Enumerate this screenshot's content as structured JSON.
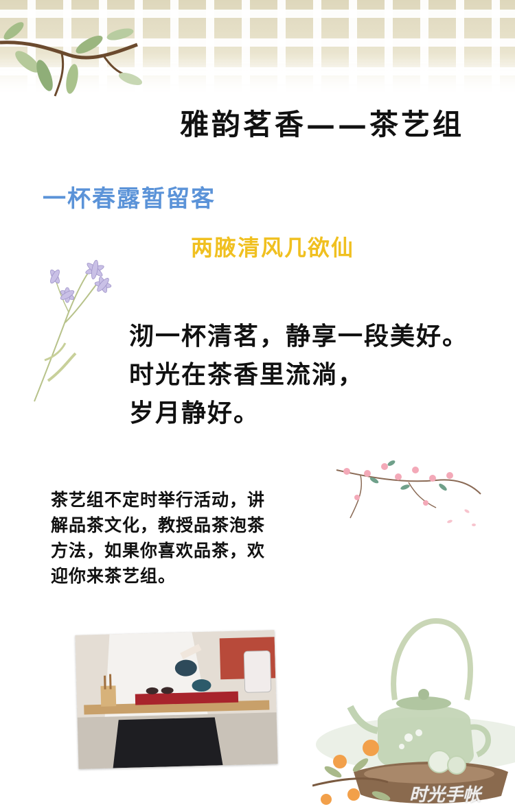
{
  "header": {
    "title": "雅韵茗香——茶艺组"
  },
  "poem": {
    "line1": "一杯春露暂留客",
    "line2": "两腋清风几欲仙",
    "line1_color": "#5b93d8",
    "line2_color": "#f0c020"
  },
  "verse": {
    "lines": [
      "沏一杯清茗，静享一段美好。",
      "时光在茶香里流淌，",
      "岁月静好。"
    ]
  },
  "description": {
    "lines": [
      "茶艺组不定时举行活动，讲",
      "解品茶文化，教授品茶泡茶",
      "方法，如果你喜欢品茶，欢",
      "迎你来茶艺组。"
    ]
  },
  "decorations": {
    "top_branch": "branch-leaves-icon",
    "left_flower": "wildflower-icon",
    "blossom": "plum-blossom-icon",
    "teapot": "teapot-icon",
    "photo": "tea-ceremony-photo"
  },
  "watermark": {
    "text": "时光手帐"
  }
}
